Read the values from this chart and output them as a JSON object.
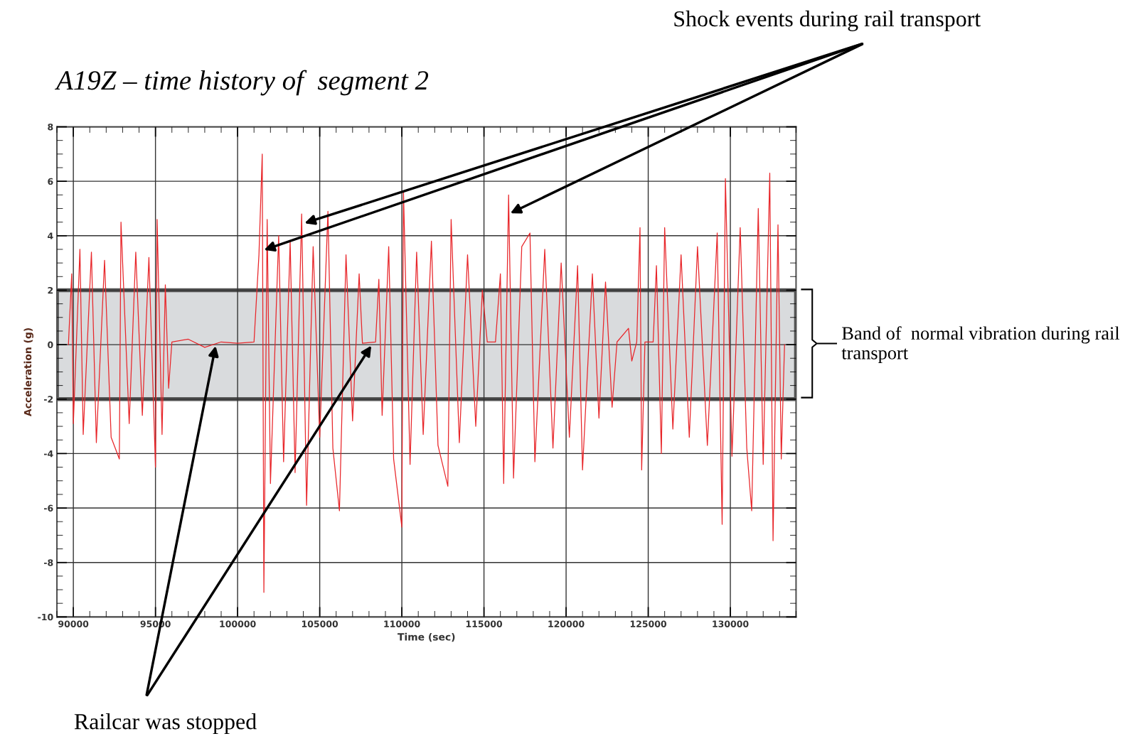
{
  "chart_data": {
    "type": "line",
    "title": "A19Z – time history of  segment 2",
    "xlabel": "Time (sec)",
    "ylabel": "Acceleration (g)",
    "xlim": [
      89000,
      134000
    ],
    "xticks": [
      90000,
      95000,
      100000,
      105000,
      110000,
      115000,
      120000,
      125000,
      130000
    ],
    "ylim": [
      -10,
      8
    ],
    "yticks": [
      -10,
      -8,
      -6,
      -4,
      -2,
      0,
      2,
      4,
      6,
      8
    ],
    "grid": true,
    "legend": false,
    "marker": "none",
    "line_style": "solid",
    "series": [
      {
        "color": "#e8262a",
        "x": [
          89700,
          89900,
          90000,
          90400,
          90600,
          91100,
          91400,
          91900,
          92300,
          92800,
          92900,
          93400,
          93800,
          94200,
          94600,
          95000,
          95100,
          95400,
          95600,
          95800,
          96000,
          97000,
          98000,
          99000,
          100000,
          101000,
          101300,
          101500,
          101600,
          101800,
          102000,
          102500,
          102800,
          103200,
          103500,
          103900,
          104200,
          104600,
          105000,
          105500,
          105800,
          106200,
          106600,
          107000,
          107400,
          107600,
          108400,
          108600,
          108800,
          109200,
          109500,
          110000,
          110100,
          110500,
          110900,
          111300,
          111800,
          112200,
          112800,
          113000,
          113500,
          114000,
          114500,
          114900,
          115200,
          115700,
          116000,
          116200,
          116500,
          116800,
          117300,
          117800,
          118100,
          118700,
          119200,
          119700,
          120200,
          120700,
          121000,
          121600,
          122000,
          122400,
          122800,
          123100,
          123800,
          124000,
          124300,
          124500,
          124600,
          124800,
          125300,
          125500,
          125800,
          126000,
          126500,
          127000,
          127500,
          128000,
          128600,
          129200,
          129500,
          129700,
          130100,
          130600,
          131000,
          131300,
          131700,
          132000,
          132400,
          132600,
          132900,
          133100,
          133300
        ],
        "values": [
          0,
          2.6,
          -2.9,
          3.5,
          -3.3,
          3.4,
          -3.6,
          3.1,
          -3.4,
          -4.2,
          4.5,
          -2.9,
          3.4,
          -2.6,
          3.2,
          -4.5,
          4.6,
          -3.3,
          2.2,
          -1.6,
          0.1,
          0.2,
          -0.1,
          0.1,
          0.05,
          0.1,
          3.3,
          7.0,
          -9.1,
          4.6,
          -5.1,
          4.0,
          -4.3,
          3.8,
          -4.7,
          4.8,
          -5.9,
          3.6,
          -3.4,
          4.9,
          -3.8,
          -6.1,
          3.3,
          -2.8,
          2.6,
          0.05,
          0.1,
          2.4,
          -2.6,
          3.6,
          -4.2,
          -6.7,
          5.6,
          -4.4,
          3.4,
          -3.3,
          3.8,
          -3.7,
          -5.2,
          4.6,
          -3.6,
          3.3,
          -3.0,
          2.0,
          0.1,
          0.1,
          2.6,
          -5.1,
          5.5,
          -4.9,
          3.6,
          4.1,
          -4.3,
          3.5,
          -3.8,
          3.0,
          -3.4,
          2.9,
          -4.6,
          2.6,
          -2.7,
          2.3,
          -2.3,
          0.1,
          0.6,
          -0.6,
          0.1,
          4.3,
          -4.6,
          0.1,
          0.1,
          2.9,
          -4.0,
          4.3,
          -3.1,
          3.3,
          -3.4,
          3.6,
          -3.7,
          4.1,
          -6.6,
          6.1,
          -4.1,
          4.3,
          -3.8,
          -6.1,
          5.0,
          -4.4,
          6.3,
          -7.2,
          4.4,
          -4.2,
          0
        ]
      }
    ],
    "bands": [
      {
        "axis": "y",
        "from": -2,
        "to": 2,
        "label": "Band of  normal vibration during rail transport",
        "color": "#d9dbdd"
      }
    ],
    "annotations": [
      "Shock events during rail transport",
      "Railcar was stopped"
    ]
  }
}
